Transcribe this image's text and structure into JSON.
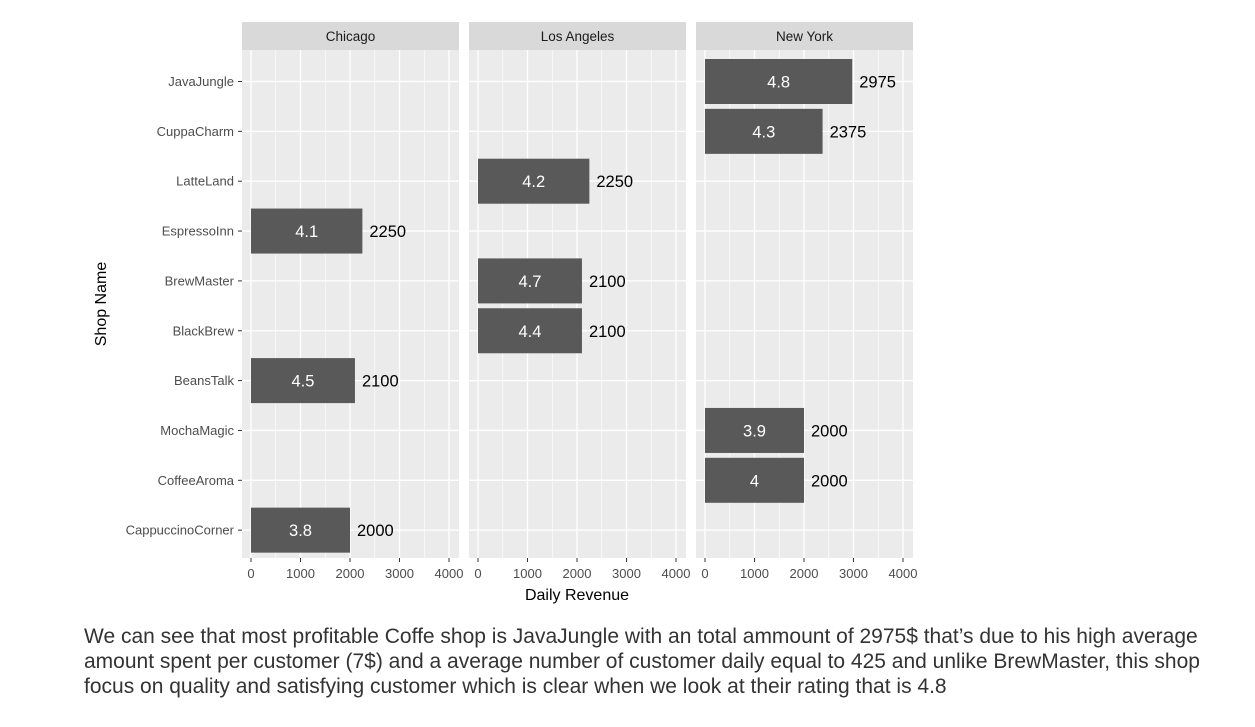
{
  "chart_data": {
    "type": "bar",
    "orientation": "horizontal",
    "facet_by": "city",
    "panels": [
      "Chicago",
      "Los Angeles",
      "New York"
    ],
    "categories": [
      "JavaJungle",
      "CuppaCharm",
      "LatteLand",
      "EspressoInn",
      "BrewMaster",
      "BlackBrew",
      "BeansTalk",
      "MochaMagic",
      "CoffeeAroma",
      "CappuccinoCorner"
    ],
    "xlabel": "Daily Revenue",
    "ylabel": "Shop Name",
    "xlim": [
      0,
      4000
    ],
    "xticks": [
      0,
      1000,
      2000,
      3000,
      4000
    ],
    "grid": true,
    "bar_color": "#595959",
    "panel_background": "#ebebeb",
    "strip_background": "#d9d9d9",
    "bars": [
      {
        "panel": "Chicago",
        "shop": "EspressoInn",
        "value": 2250,
        "rating": "4.1"
      },
      {
        "panel": "Chicago",
        "shop": "BeansTalk",
        "value": 2100,
        "rating": "4.5"
      },
      {
        "panel": "Chicago",
        "shop": "CappuccinoCorner",
        "value": 2000,
        "rating": "3.8"
      },
      {
        "panel": "Los Angeles",
        "shop": "LatteLand",
        "value": 2250,
        "rating": "4.2"
      },
      {
        "panel": "Los Angeles",
        "shop": "BrewMaster",
        "value": 2100,
        "rating": "4.7"
      },
      {
        "panel": "Los Angeles",
        "shop": "BlackBrew",
        "value": 2100,
        "rating": "4.4"
      },
      {
        "panel": "New York",
        "shop": "JavaJungle",
        "value": 2975,
        "rating": "4.8"
      },
      {
        "panel": "New York",
        "shop": "CuppaCharm",
        "value": 2375,
        "rating": "4.3"
      },
      {
        "panel": "New York",
        "shop": "MochaMagic",
        "value": 2000,
        "rating": "3.9"
      },
      {
        "panel": "New York",
        "shop": "CoffeeAroma",
        "value": 2000,
        "rating": "4"
      }
    ]
  },
  "caption": "We can see that most profitable Coffe shop is JavaJungle with an total ammount of 2975$ that’s due to his high average amount spent per customer (7$) and a average number of customer daily equal to 425 and unlike BrewMaster, this shop focus on quality and satisfying customer which is clear when we look at their rating that is 4.8"
}
